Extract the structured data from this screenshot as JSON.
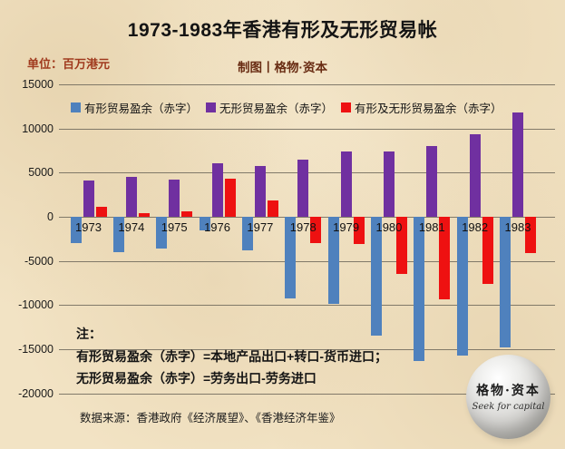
{
  "header": {
    "title": "1973-1983年香港有形及无形贸易帐",
    "unit_label": "单位：百万港元",
    "unit_color": "#a03a1e",
    "credit": "制图丨格物·资本",
    "credit_color": "#682b12"
  },
  "chart_data": {
    "type": "bar",
    "title": "1973-1983年香港有形及无形贸易帐",
    "unit": "百万港元",
    "categories": [
      1973,
      1974,
      1975,
      1976,
      1977,
      1978,
      1979,
      1980,
      1981,
      1982,
      1983
    ],
    "series": [
      {
        "key": "visible-trade-balance",
        "name": "有形贸易盈余（赤字）",
        "color": "#4f81bd",
        "values": [
          -3000,
          -4000,
          -3600,
          -1500,
          -3800,
          -9200,
          -9900,
          -13400,
          -16300,
          -15700,
          -14800
        ]
      },
      {
        "key": "invisible-trade-balance",
        "name": "无形贸易盈余（赤字）",
        "color": "#7030a0",
        "values": [
          4100,
          4500,
          4200,
          6100,
          5700,
          6500,
          7350,
          7400,
          8050,
          9350,
          11800
        ]
      },
      {
        "key": "combined-trade-balance",
        "name": "有形及无形贸易盈余（赤字）",
        "color": "#ee1111",
        "values": [
          1100,
          400,
          600,
          4300,
          1800,
          -3000,
          -3100,
          -6500,
          -9300,
          -7600,
          -4100
        ]
      }
    ],
    "ylim": [
      -20000,
      15000
    ],
    "ytick_step": 5000,
    "grid": true,
    "legend_position": "top"
  },
  "notes": {
    "heading": "注：",
    "line1": "有形贸易盈余（赤字）=本地产品出口+转口-货币进口；",
    "line2": "无形贸易盈余（赤字）=劳务出口-劳务进口",
    "source": "数据来源：香港政府《经济展望》、《香港经济年鉴》"
  },
  "watermark": {
    "cn": "格物·资本",
    "en": "Seek for capital"
  },
  "colors": {
    "background": "#f2e3c4",
    "gridline": "#6d675a",
    "text": "#141414"
  }
}
